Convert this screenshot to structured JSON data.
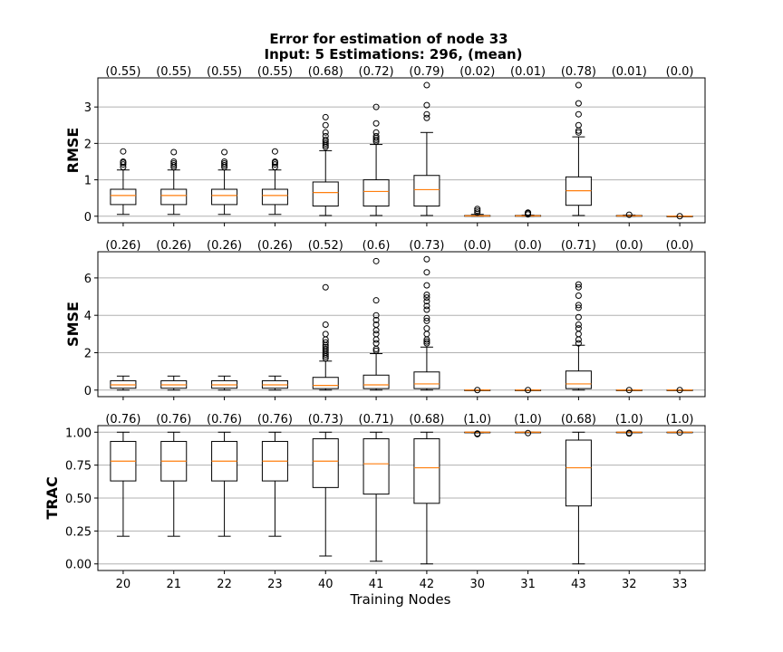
{
  "chart_data": {
    "type": "boxplot",
    "title": "Error for estimation of node 33",
    "subtitle": "Input: 5   Estimations: 296,  (mean)",
    "xlabel": "Training Nodes",
    "categories": [
      "20",
      "21",
      "22",
      "23",
      "40",
      "41",
      "42",
      "30",
      "31",
      "43",
      "32",
      "33"
    ],
    "grid": "horizontal",
    "colors": {
      "box": "#000000",
      "median": "#ff7f0e",
      "grid": "#b0b0b0"
    },
    "panels": [
      {
        "ylabel": "RMSE",
        "ylim": [
          -0.18,
          3.8
        ],
        "yticks": [
          0,
          1,
          2,
          3
        ],
        "ytick_labels": [
          "0",
          "1",
          "2",
          "3"
        ],
        "means": [
          "(0.55)",
          "(0.55)",
          "(0.55)",
          "(0.55)",
          "(0.68)",
          "(0.72)",
          "(0.79)",
          "(0.02)",
          "(0.01)",
          "(0.78)",
          "(0.01)",
          "(0.0)"
        ],
        "boxes": [
          {
            "wlo": 0.05,
            "q1": 0.32,
            "med": 0.57,
            "q3": 0.74,
            "whi": 1.27,
            "fliers": [
              1.35,
              1.42,
              1.47,
              1.5,
              1.78
            ]
          },
          {
            "wlo": 0.05,
            "q1": 0.32,
            "med": 0.57,
            "q3": 0.74,
            "whi": 1.27,
            "fliers": [
              1.35,
              1.4,
              1.45,
              1.5,
              1.76
            ]
          },
          {
            "wlo": 0.05,
            "q1": 0.32,
            "med": 0.57,
            "q3": 0.74,
            "whi": 1.27,
            "fliers": [
              1.35,
              1.4,
              1.45,
              1.5,
              1.76
            ]
          },
          {
            "wlo": 0.05,
            "q1": 0.32,
            "med": 0.57,
            "q3": 0.74,
            "whi": 1.27,
            "fliers": [
              1.35,
              1.42,
              1.47,
              1.5,
              1.78
            ]
          },
          {
            "wlo": 0.02,
            "q1": 0.28,
            "med": 0.65,
            "q3": 0.94,
            "whi": 1.8,
            "fliers": [
              1.9,
              1.95,
              2.0,
              2.05,
              2.1,
              2.2,
              2.3,
              2.5,
              2.72
            ]
          },
          {
            "wlo": 0.02,
            "q1": 0.28,
            "med": 0.68,
            "q3": 1.0,
            "whi": 1.97,
            "fliers": [
              2.05,
              2.1,
              2.15,
              2.2,
              2.3,
              2.55,
              3.0
            ]
          },
          {
            "wlo": 0.02,
            "q1": 0.28,
            "med": 0.73,
            "q3": 1.12,
            "whi": 2.3,
            "fliers": [
              2.7,
              2.8,
              3.05,
              3.6
            ]
          },
          {
            "wlo": 0.0,
            "q1": 0.0,
            "med": 0.01,
            "q3": 0.02,
            "whi": 0.05,
            "fliers": [
              0.1,
              0.15,
              0.2
            ]
          },
          {
            "wlo": 0.0,
            "q1": 0.0,
            "med": 0.01,
            "q3": 0.02,
            "whi": 0.03,
            "fliers": [
              0.05,
              0.08,
              0.1
            ]
          },
          {
            "wlo": 0.02,
            "q1": 0.3,
            "med": 0.7,
            "q3": 1.08,
            "whi": 2.18,
            "fliers": [
              2.3,
              2.35,
              2.5,
              2.8,
              3.1,
              3.6
            ]
          },
          {
            "wlo": 0.0,
            "q1": 0.0,
            "med": 0.01,
            "q3": 0.02,
            "whi": 0.03,
            "fliers": [
              0.04
            ]
          },
          {
            "wlo": 0.0,
            "q1": 0.0,
            "med": 0.0,
            "q3": 0.0,
            "whi": 0.0,
            "fliers": [
              0.0
            ]
          }
        ]
      },
      {
        "ylabel": "SMSE",
        "ylim": [
          -0.35,
          7.4
        ],
        "yticks": [
          0,
          2,
          4,
          6
        ],
        "ytick_labels": [
          "0",
          "2",
          "4",
          "6"
        ],
        "means": [
          "(0.26)",
          "(0.26)",
          "(0.26)",
          "(0.26)",
          "(0.52)",
          "(0.6)",
          "(0.73)",
          "(0.0)",
          "(0.0)",
          "(0.71)",
          "(0.0)",
          "(0.0)"
        ],
        "boxes": [
          {
            "wlo": 0.0,
            "q1": 0.1,
            "med": 0.28,
            "q3": 0.5,
            "whi": 0.75,
            "fliers": []
          },
          {
            "wlo": 0.0,
            "q1": 0.1,
            "med": 0.28,
            "q3": 0.5,
            "whi": 0.75,
            "fliers": []
          },
          {
            "wlo": 0.0,
            "q1": 0.1,
            "med": 0.28,
            "q3": 0.5,
            "whi": 0.75,
            "fliers": []
          },
          {
            "wlo": 0.0,
            "q1": 0.1,
            "med": 0.28,
            "q3": 0.5,
            "whi": 0.75,
            "fliers": []
          },
          {
            "wlo": 0.0,
            "q1": 0.08,
            "med": 0.25,
            "q3": 0.68,
            "whi": 1.55,
            "fliers": [
              1.7,
              1.8,
              1.9,
              2.0,
              2.1,
              2.2,
              2.3,
              2.4,
              2.55,
              2.7,
              3.0,
              3.5,
              5.5
            ]
          },
          {
            "wlo": 0.0,
            "q1": 0.08,
            "med": 0.28,
            "q3": 0.8,
            "whi": 1.95,
            "fliers": [
              2.1,
              2.2,
              2.5,
              2.7,
              3.0,
              3.2,
              3.5,
              3.75,
              4.0,
              4.8,
              6.9
            ]
          },
          {
            "wlo": 0.0,
            "q1": 0.08,
            "med": 0.33,
            "q3": 0.97,
            "whi": 2.3,
            "fliers": [
              2.5,
              2.6,
              2.7,
              3.0,
              3.3,
              3.7,
              3.85,
              4.3,
              4.5,
              4.75,
              4.95,
              5.1,
              5.6,
              6.3,
              7.0
            ]
          },
          {
            "wlo": 0.0,
            "q1": 0.0,
            "med": 0.0,
            "q3": 0.0,
            "whi": 0.0,
            "fliers": [
              0.0
            ]
          },
          {
            "wlo": 0.0,
            "q1": 0.0,
            "med": 0.0,
            "q3": 0.0,
            "whi": 0.0,
            "fliers": [
              0.0
            ]
          },
          {
            "wlo": 0.0,
            "q1": 0.08,
            "med": 0.33,
            "q3": 1.02,
            "whi": 2.4,
            "fliers": [
              2.5,
              2.7,
              3.0,
              3.3,
              3.5,
              3.9,
              4.4,
              4.55,
              5.05,
              5.5,
              5.65
            ]
          },
          {
            "wlo": 0.0,
            "q1": 0.0,
            "med": 0.0,
            "q3": 0.0,
            "whi": 0.0,
            "fliers": [
              0.0
            ]
          },
          {
            "wlo": 0.0,
            "q1": 0.0,
            "med": 0.0,
            "q3": 0.0,
            "whi": 0.0,
            "fliers": [
              0.0
            ]
          }
        ]
      },
      {
        "ylabel": "TRAC",
        "ylim": [
          -0.05,
          1.05
        ],
        "yticks": [
          0,
          0.25,
          0.5,
          0.75,
          1.0
        ],
        "ytick_labels": [
          "0.00",
          "0.25",
          "0.50",
          "0.75",
          "1.00"
        ],
        "means": [
          "(0.76)",
          "(0.76)",
          "(0.76)",
          "(0.76)",
          "(0.73)",
          "(0.71)",
          "(0.68)",
          "(1.0)",
          "(1.0)",
          "(0.68)",
          "(1.0)",
          "(1.0)"
        ],
        "boxes": [
          {
            "wlo": 0.21,
            "q1": 0.63,
            "med": 0.78,
            "q3": 0.93,
            "whi": 1.0,
            "fliers": []
          },
          {
            "wlo": 0.21,
            "q1": 0.63,
            "med": 0.78,
            "q3": 0.93,
            "whi": 1.0,
            "fliers": []
          },
          {
            "wlo": 0.21,
            "q1": 0.63,
            "med": 0.78,
            "q3": 0.93,
            "whi": 1.0,
            "fliers": []
          },
          {
            "wlo": 0.21,
            "q1": 0.63,
            "med": 0.78,
            "q3": 0.93,
            "whi": 1.0,
            "fliers": []
          },
          {
            "wlo": 0.06,
            "q1": 0.58,
            "med": 0.78,
            "q3": 0.95,
            "whi": 1.0,
            "fliers": []
          },
          {
            "wlo": 0.02,
            "q1": 0.53,
            "med": 0.76,
            "q3": 0.95,
            "whi": 1.0,
            "fliers": []
          },
          {
            "wlo": 0.0,
            "q1": 0.46,
            "med": 0.73,
            "q3": 0.95,
            "whi": 1.0,
            "fliers": []
          },
          {
            "wlo": 0.995,
            "q1": 0.998,
            "med": 1.0,
            "q3": 1.0,
            "whi": 1.0,
            "fliers": [
              0.985,
              0.99
            ]
          },
          {
            "wlo": 0.998,
            "q1": 0.999,
            "med": 1.0,
            "q3": 1.0,
            "whi": 1.0,
            "fliers": [
              0.993
            ]
          },
          {
            "wlo": 0.0,
            "q1": 0.44,
            "med": 0.73,
            "q3": 0.94,
            "whi": 1.0,
            "fliers": []
          },
          {
            "wlo": 0.998,
            "q1": 0.999,
            "med": 1.0,
            "q3": 1.0,
            "whi": 1.0,
            "fliers": [
              0.99,
              0.995
            ]
          },
          {
            "wlo": 0.999,
            "q1": 1.0,
            "med": 1.0,
            "q3": 1.0,
            "whi": 1.0,
            "fliers": [
              0.997
            ]
          }
        ]
      }
    ]
  }
}
